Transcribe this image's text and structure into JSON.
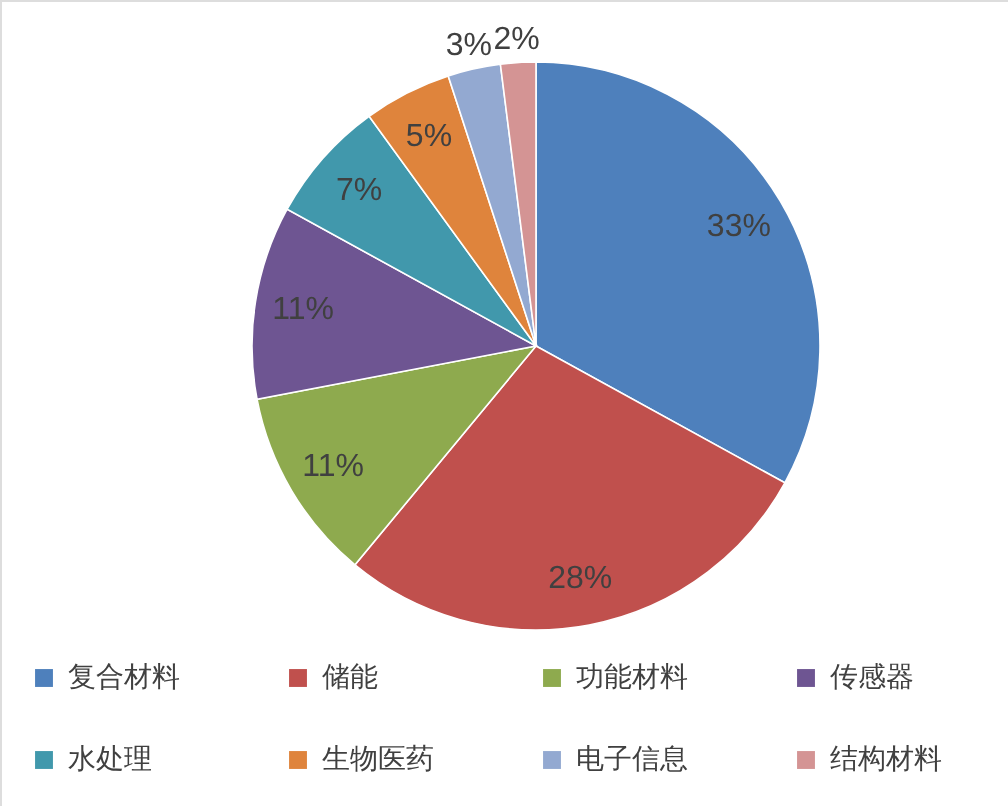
{
  "chart_data": {
    "type": "pie",
    "categories": [
      "复合材料",
      "储能",
      "功能材料",
      "传感器",
      "水处理",
      "生物医药",
      "电子信息",
      "结构材料"
    ],
    "values": [
      33,
      28,
      11,
      11,
      7,
      5,
      3,
      2
    ],
    "value_labels": [
      "33%",
      "28%",
      "11%",
      "11%",
      "7%",
      "5%",
      "3%",
      "2%"
    ],
    "colors": [
      "#4e80bc",
      "#c0504d",
      "#8eaa4e",
      "#6e5592",
      "#4198ac",
      "#df843c",
      "#93a9d1",
      "#d49494"
    ],
    "legend": "bottom"
  }
}
